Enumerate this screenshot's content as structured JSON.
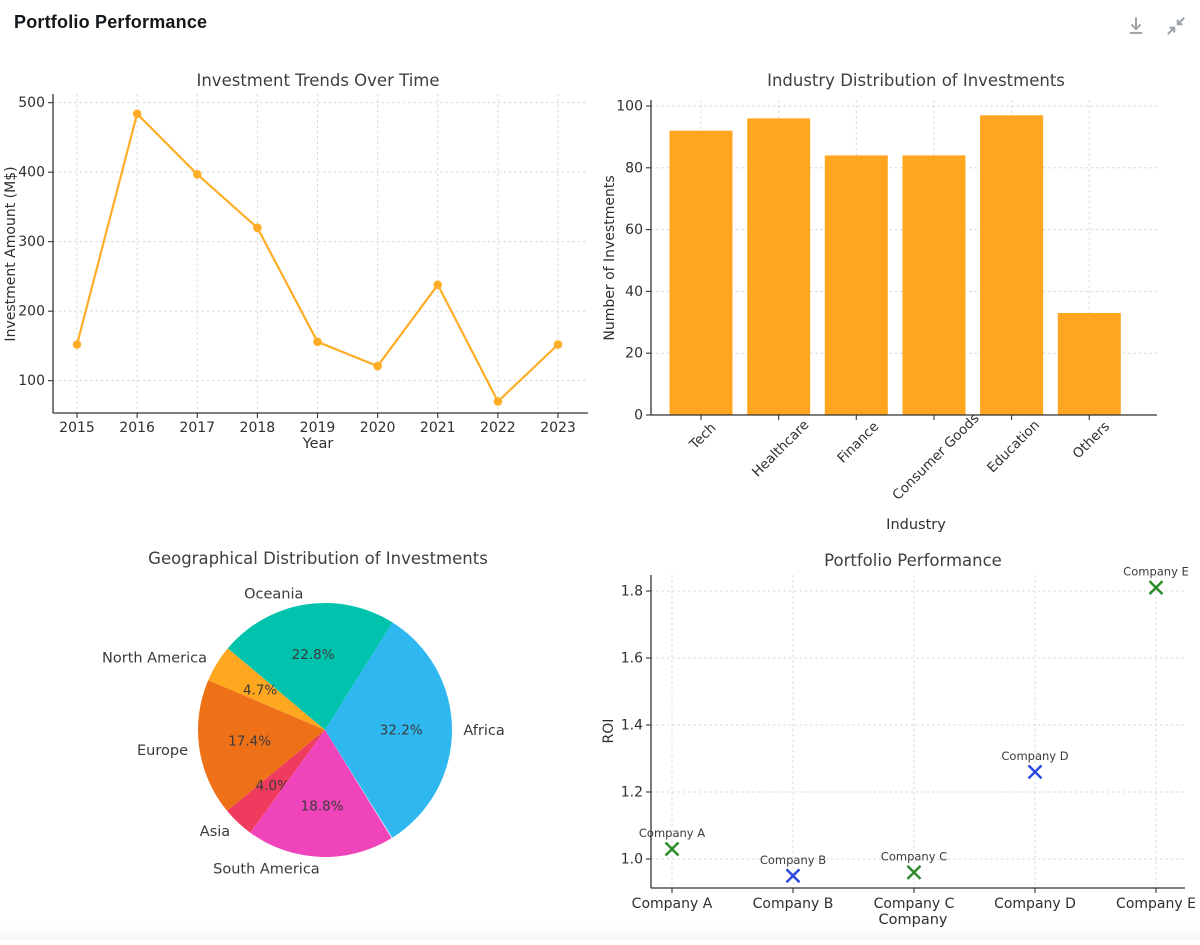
{
  "header": {
    "title": "Portfolio Performance",
    "actions": [
      {
        "name": "download-button",
        "icon": "download-icon"
      },
      {
        "name": "collapse-button",
        "icon": "collapse-fullscreen-icon"
      }
    ]
  },
  "theme": {
    "background": "#ffffff",
    "grid_color": "#d8d8d8",
    "axis_color": "#333333",
    "tick_text_color": "#2f2f2f",
    "title_color": "#3c3f42",
    "icon_color": "#9aa0a6"
  },
  "chart_data": [
    {
      "id": "investment-trends",
      "type": "line",
      "title": "Investment Trends Over Time",
      "xlabel": "Year",
      "ylabel": "Investment Amount (M$)",
      "x": [
        2015,
        2016,
        2017,
        2018,
        2019,
        2020,
        2021,
        2022,
        2023
      ],
      "values": [
        152,
        484,
        397,
        320,
        156,
        121,
        238,
        70,
        152
      ],
      "yticks": [
        100,
        200,
        300,
        400,
        500
      ],
      "ylim": [
        53.5,
        512.5
      ],
      "grid": true,
      "legend": "none",
      "line_color": "#FFAD26",
      "marker": "circle"
    },
    {
      "id": "industry-distribution",
      "type": "bar",
      "title": "Industry Distribution of Investments",
      "xlabel": "Industry",
      "ylabel": "Number of Investments",
      "categories": [
        "Tech",
        "Healthcare",
        "Finance",
        "Consumer Goods",
        "Education",
        "Others"
      ],
      "values": [
        92,
        96,
        84,
        84,
        97,
        33
      ],
      "yticks": [
        0,
        20,
        40,
        60,
        80,
        100
      ],
      "ylim": [
        0,
        102
      ],
      "grid": true,
      "legend": "none",
      "bar_color": "#FFA51F",
      "tick_label_rotation_deg": 45
    },
    {
      "id": "geo-distribution",
      "type": "pie",
      "title": "Geographical Distribution of Investments",
      "slices": [
        {
          "label": "Africa",
          "pct": 32.2,
          "color": "#2FB8F0"
        },
        {
          "label": "Oceania",
          "pct": 22.8,
          "color": "#00C3AE"
        },
        {
          "label": "North America",
          "pct": 4.7,
          "color": "#FFA71F"
        },
        {
          "label": "Europe",
          "pct": 17.4,
          "color": "#EE7118"
        },
        {
          "label": "Asia",
          "pct": 4.0,
          "color": "#EF3B5D"
        },
        {
          "label": "South America",
          "pct": 18.8,
          "color": "#F044BB"
        }
      ],
      "start_angle_deg": -58,
      "direction": "counterclockwise",
      "pct_label_color": "#3b3b3b",
      "legend": "none"
    },
    {
      "id": "portfolio-performance",
      "type": "scatter",
      "title": "Portfolio Performance",
      "xlabel": "Company",
      "ylabel": "ROI",
      "categories": [
        "Company A",
        "Company B",
        "Company C",
        "Company D",
        "Company E"
      ],
      "points": [
        {
          "label": "Company A",
          "roi": 1.03,
          "color": "#2E8B2B"
        },
        {
          "label": "Company B",
          "roi": 0.95,
          "color": "#2B48E0"
        },
        {
          "label": "Company C",
          "roi": 0.96,
          "color": "#2E8B2B"
        },
        {
          "label": "Company D",
          "roi": 1.26,
          "color": "#2B48E0"
        },
        {
          "label": "Company E",
          "roi": 1.81,
          "color": "#2E8B2B"
        }
      ],
      "yticks": [
        1.0,
        1.2,
        1.4,
        1.6,
        1.8
      ],
      "ylim": [
        0.91,
        1.85
      ],
      "grid": true,
      "legend": "none",
      "marker": "x"
    }
  ]
}
